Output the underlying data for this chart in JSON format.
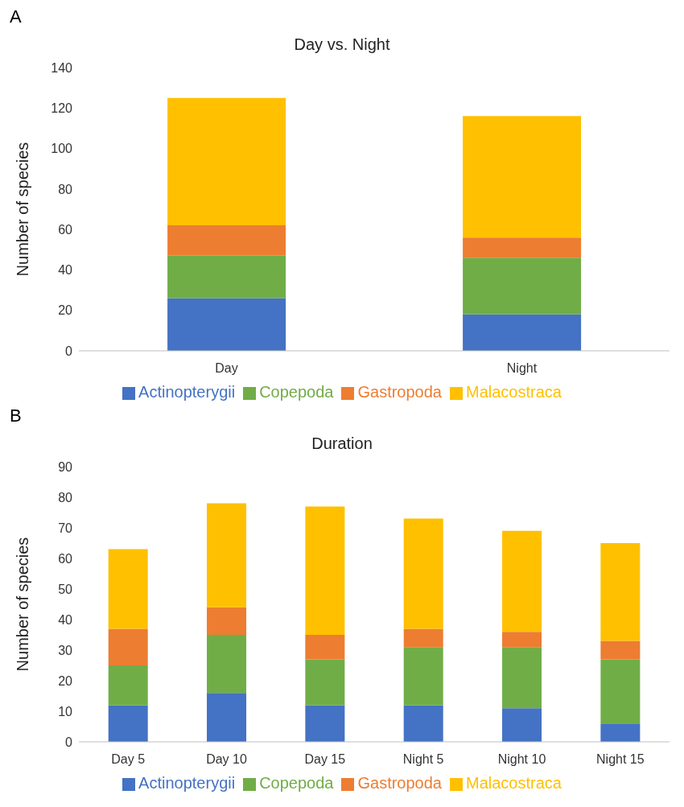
{
  "chart_data": [
    {
      "type": "bar",
      "title": "Day vs. Night",
      "ylabel": "Number of species",
      "annotations": [
        "A"
      ],
      "categories": [
        "Day",
        "Night"
      ],
      "stacked": true,
      "ylim": [
        0,
        140
      ],
      "yticks": [
        0,
        20,
        40,
        60,
        80,
        100,
        120,
        140
      ],
      "grid": false,
      "legend": "bottom",
      "series": [
        {
          "name": "Actinopterygii",
          "color": "#4472c4",
          "values": [
            26,
            18
          ]
        },
        {
          "name": "Copepoda",
          "color": "#70ad47",
          "values": [
            21,
            28
          ]
        },
        {
          "name": "Gastropoda",
          "color": "#ed7d31",
          "values": [
            15,
            10
          ]
        },
        {
          "name": "Malacostraca",
          "color": "#ffc000",
          "values": [
            63,
            60
          ]
        }
      ]
    },
    {
      "type": "bar",
      "title": "Duration",
      "ylabel": "Number of species",
      "annotations": [
        "B"
      ],
      "categories": [
        "Day 5",
        "Day 10",
        "Day 15",
        "Night 5",
        "Night 10",
        "Night 15"
      ],
      "stacked": true,
      "ylim": [
        0,
        90
      ],
      "yticks": [
        0,
        10,
        20,
        30,
        40,
        50,
        60,
        70,
        80,
        90
      ],
      "grid": false,
      "legend": "bottom",
      "series": [
        {
          "name": "Actinopterygii",
          "color": "#4472c4",
          "values": [
            12,
            16,
            12,
            12,
            11,
            6
          ]
        },
        {
          "name": "Copepoda",
          "color": "#70ad47",
          "values": [
            13,
            19,
            15,
            19,
            20,
            21
          ]
        },
        {
          "name": "Gastropoda",
          "color": "#ed7d31",
          "values": [
            12,
            9,
            8,
            6,
            5,
            6
          ]
        },
        {
          "name": "Malacostraca",
          "color": "#ffc000",
          "values": [
            26,
            34,
            42,
            36,
            33,
            32
          ]
        }
      ]
    }
  ]
}
